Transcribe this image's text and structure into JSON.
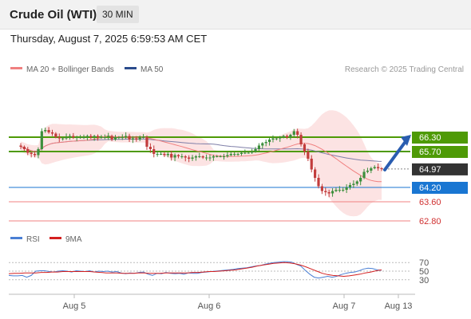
{
  "header": {
    "instrument": "Crude Oil (WTI)",
    "timeframe": "30 MIN",
    "datetime": "Thursday, August 7, 2025 6:59:53 AM CET"
  },
  "legend": {
    "ma20": "MA 20 + Bollinger Bands",
    "ma50": "MA 50",
    "credit": "Research © 2025 Trading Central"
  },
  "rsi_legend": {
    "rsi": "RSI",
    "ma": "9MA"
  },
  "x_axis": {
    "labels": [
      "Aug 5",
      "Aug 6",
      "Aug 7",
      "Aug 13"
    ]
  },
  "colors": {
    "up": "#3c8f3c",
    "down": "#c23c3c",
    "resistance": "#4e9a06",
    "support": "#1976d2",
    "support_alt": "#f08080",
    "ma20": "#f08080",
    "ma50": "#7f7fa8",
    "band": "#fbd7d7",
    "arrow": "#2a5db0",
    "rsi": "#4a7fd4",
    "rsi_ma": "#d42020",
    "last": "#333333"
  },
  "chart_data": [
    {
      "type": "candlestick",
      "title": "Crude Oil (WTI)",
      "interval": "30 MIN",
      "y_range": [
        62.6,
        68.2
      ],
      "x_axis_labels": [
        "Aug 5",
        "Aug 6",
        "Aug 7",
        "Aug 13"
      ],
      "last_price": 64.97,
      "levels": [
        {
          "value": 66.3,
          "label": "66.30",
          "kind": "resistance"
        },
        {
          "value": 65.7,
          "label": "65.70",
          "kind": "resistance"
        },
        {
          "value": 64.97,
          "label": "64.97",
          "kind": "last"
        },
        {
          "value": 64.2,
          "label": "64.20",
          "kind": "pivot"
        },
        {
          "value": 63.6,
          "label": "63.60",
          "kind": "support"
        },
        {
          "value": 62.8,
          "label": "62.80",
          "kind": "support"
        }
      ],
      "series": [
        {
          "name": "MA 20 + Bollinger Bands",
          "kind": "ma20_bands"
        },
        {
          "name": "MA 50",
          "kind": "ma50"
        }
      ],
      "close_path": [
        65.9,
        65.8,
        65.65,
        65.6,
        65.55,
        65.8,
        66.55,
        66.6,
        66.5,
        66.45,
        66.3,
        66.25,
        66.25,
        66.3,
        66.35,
        66.3,
        66.3,
        66.3,
        66.3,
        66.35,
        66.3,
        66.35,
        66.3,
        66.3,
        66.3,
        66.35,
        66.2,
        66.3,
        66.3,
        66.3,
        66.35,
        66.2,
        66.25,
        66.2,
        66.3,
        66.3,
        65.9,
        65.8,
        65.6,
        65.6,
        65.6,
        65.55,
        65.6,
        65.45,
        65.55,
        65.5,
        65.5,
        65.45,
        65.4,
        65.45,
        65.5,
        65.5,
        65.45,
        65.45,
        65.45,
        65.5,
        65.5,
        65.5,
        65.5,
        65.55,
        65.6,
        65.6,
        65.6,
        65.65,
        65.65,
        65.65,
        65.7,
        65.8,
        65.95,
        66.05,
        66.1,
        66.2,
        66.25,
        66.25,
        66.3,
        66.35,
        66.3,
        66.4,
        66.55,
        66.4,
        66.0,
        65.7,
        65.4,
        64.95,
        64.6,
        64.25,
        64.05,
        64.0,
        63.95,
        64.05,
        64.1,
        64.1,
        64.1,
        64.2,
        64.3,
        64.35,
        64.45,
        64.6,
        64.85,
        64.9,
        65.0,
        65.05,
        65.0,
        64.97
      ],
      "projection": {
        "from": 64.97,
        "to": 66.3
      }
    },
    {
      "type": "line",
      "title": "RSI",
      "y_range": [
        0,
        100
      ],
      "y_ticks": [
        70,
        50,
        30
      ],
      "series": [
        {
          "name": "RSI",
          "values": [
            40,
            39,
            39,
            40,
            36,
            40,
            50,
            51,
            51,
            49,
            48,
            50,
            51,
            50,
            48,
            51,
            50,
            49,
            51,
            48,
            50,
            49,
            50,
            48,
            49,
            46,
            44,
            46,
            45,
            47,
            48,
            43,
            40,
            45,
            44,
            47,
            45,
            44,
            45,
            43,
            46,
            45,
            45,
            47,
            48,
            49,
            50,
            51,
            52,
            53,
            54,
            56,
            57,
            58,
            60,
            62,
            63,
            66,
            68,
            70,
            71,
            72,
            72,
            71,
            66,
            62,
            52,
            43,
            36,
            34,
            36,
            38,
            36,
            38,
            42,
            45,
            47,
            48,
            51,
            55,
            57,
            56,
            53,
            52
          ]
        },
        {
          "name": "9MA",
          "values": [
            44,
            45,
            45,
            46,
            46,
            46,
            47,
            47,
            48,
            48,
            49,
            49,
            49,
            49,
            49,
            49,
            48,
            47,
            46,
            46,
            46,
            45,
            45,
            45,
            46,
            46,
            45,
            45,
            45,
            46,
            46,
            46,
            46,
            46,
            47,
            47,
            48,
            49,
            49,
            50,
            51,
            52,
            53,
            55,
            57,
            59,
            62,
            64,
            66,
            68,
            69,
            70,
            69,
            67,
            64,
            60,
            55,
            50,
            45,
            42,
            40,
            39,
            38,
            39,
            41,
            43,
            46,
            48,
            51,
            53
          ]
        }
      ]
    }
  ]
}
